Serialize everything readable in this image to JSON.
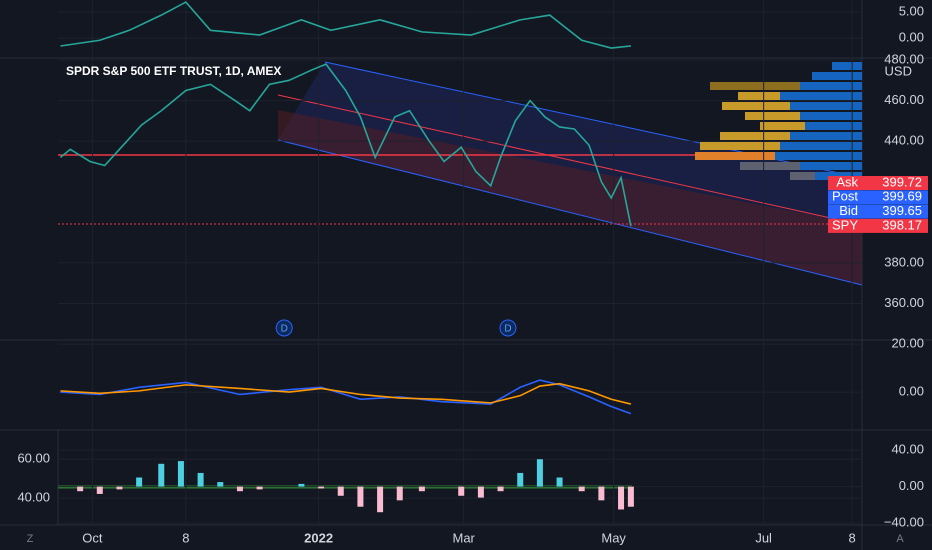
{
  "chart_data": [
    {
      "type": "line",
      "title": "SPDR S&P 500 ETF TRUST, 1D, AMEX",
      "currency": "USD",
      "x": [
        -13,
        -9,
        -1,
        5,
        11,
        20,
        28,
        38,
        48,
        58,
        64,
        72,
        80,
        89,
        95,
        103,
        109,
        115,
        123,
        129,
        137,
        143,
        150,
        156,
        162,
        166,
        172,
        178,
        184,
        190,
        196,
        202,
        207,
        211,
        215,
        219
      ],
      "series": [
        {
          "color": "#26a69a",
          "values": [
            432,
            436,
            430,
            428,
            436,
            448,
            455,
            465,
            468,
            460,
            455,
            468,
            470,
            475,
            478,
            465,
            452,
            432,
            452,
            455,
            440,
            430,
            437,
            425,
            418,
            432,
            450,
            460,
            452,
            447,
            446,
            438,
            420,
            412,
            422,
            398.17
          ]
        }
      ],
      "xlim": [
        -14,
        313
      ],
      "xticks": [
        {
          "value": 0,
          "label": "Oct"
        },
        {
          "value": 38,
          "label": "8"
        },
        {
          "value": 92,
          "label": "2022"
        },
        {
          "value": 151,
          "label": "Mar"
        },
        {
          "value": 212,
          "label": "May"
        },
        {
          "value": 273,
          "label": "Jul"
        },
        {
          "value": 309,
          "label": "8"
        }
      ],
      "ylim": [
        342,
        481
      ],
      "yticks": [
        {
          "value": 480,
          "label": "480.00"
        },
        {
          "value": 460,
          "label": "460.00"
        },
        {
          "value": 440,
          "label": "440.00"
        },
        {
          "value": 380,
          "label": "380.00"
        },
        {
          "value": 360,
          "label": "360.00"
        }
      ],
      "quotes": [
        {
          "name": "Ask",
          "value": 399.72,
          "color": "#f23645"
        },
        {
          "name": "Post",
          "value": 399.69,
          "color": "#2962ff"
        },
        {
          "name": "Bid",
          "value": 399.65,
          "color": "#2962ff"
        },
        {
          "name": "SPY",
          "value": 398.17,
          "color": "#f23645"
        }
      ],
      "markers": [
        {
          "label": "D",
          "x": 78
        },
        {
          "label": "D",
          "x": 169
        }
      ]
    },
    {
      "type": "line",
      "x": [
        -13,
        3,
        15,
        28,
        38,
        48,
        68,
        85,
        97,
        117,
        134,
        154,
        174,
        186,
        199,
        211,
        219
      ],
      "series": [
        {
          "color": "#26a69a",
          "values": [
            -1.5,
            -0.4,
            1.5,
            4.4,
            6.9,
            1.5,
            0.6,
            3.5,
            1.5,
            3.5,
            1.2,
            0.6,
            3.5,
            4.4,
            -0.4,
            -1.9,
            -1.5
          ]
        }
      ],
      "xlim": [
        -14,
        313
      ],
      "ylim": [
        -3.8,
        7.3
      ],
      "yticks": [
        {
          "value": 5,
          "label": "5.00"
        },
        {
          "value": 0,
          "label": "0.00"
        }
      ]
    },
    {
      "type": "line",
      "x": [
        -13,
        3,
        19,
        38,
        60,
        80,
        93,
        109,
        125,
        142,
        162,
        174,
        182,
        190,
        202,
        211,
        219
      ],
      "series": [
        {
          "color": "#2962ff",
          "values": [
            0,
            -1,
            2,
            4,
            -1,
            1,
            2,
            -3,
            -2,
            -4,
            -5,
            2,
            5,
            3,
            -2,
            -6,
            -9
          ]
        },
        {
          "color": "#ff9800",
          "values": [
            0.5,
            -0.5,
            0.5,
            3,
            1.5,
            0,
            1.5,
            -1,
            -2.5,
            -3,
            -4.5,
            -1.5,
            2.5,
            3.5,
            0.5,
            -3,
            -5
          ]
        }
      ],
      "xlim": [
        -14,
        313
      ],
      "ylim": [
        -15.8,
        21.7
      ],
      "yticks": [
        {
          "value": 20,
          "label": "20.00"
        },
        {
          "value": 0,
          "label": "0.00"
        }
      ]
    },
    {
      "type": "bar",
      "x": [
        -13,
        -5,
        3,
        11,
        19,
        28,
        36,
        44,
        52,
        60,
        68,
        76,
        85,
        93,
        101,
        109,
        117,
        125,
        134,
        142,
        150,
        158,
        166,
        174,
        182,
        190,
        199,
        207,
        215,
        219
      ],
      "values": [
        0,
        -5,
        -8,
        -3,
        10,
        25,
        28,
        15,
        5,
        -5,
        -3,
        0,
        3,
        -2,
        -10,
        -22,
        -28,
        -15,
        -5,
        0,
        -10,
        -12,
        -5,
        15,
        30,
        10,
        -5,
        -15,
        -25,
        -22
      ],
      "colors": {
        "up": "#4dd0e1",
        "down": "#f8bbd0"
      },
      "xlim": [
        -14,
        313
      ],
      "ylim": [
        -42,
        62
      ],
      "yticks": [
        {
          "value": 40,
          "label": "40.00"
        },
        {
          "value": 0,
          "label": "0.00"
        },
        {
          "value": -40,
          "label": "−40.00"
        }
      ],
      "y2lim": [
        26.2,
        74.9
      ],
      "y2ticks": [
        {
          "value": 60,
          "label": "60.00"
        },
        {
          "value": 40,
          "label": "40.00"
        }
      ]
    }
  ]
}
